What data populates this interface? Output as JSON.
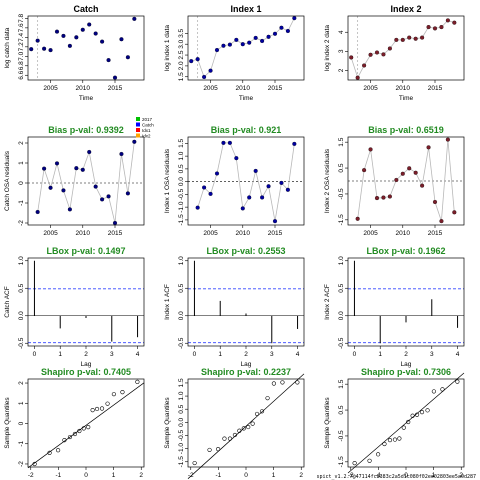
{
  "figure": {
    "footer": "spict_v1.2.7@47114fc8383c2a5d1c080f02ee02803ee5a0d287"
  },
  "chart_data": [
    {
      "type": "scatter",
      "row": 0,
      "col": 0,
      "title": "Catch",
      "title_color": "#000000",
      "xlabel": "Time",
      "ylabel": "log catch data",
      "xlim": [
        2001.5,
        2019.5
      ],
      "ylim": [
        6.5,
        7.85
      ],
      "xticks": [
        2005,
        2010,
        2015
      ],
      "yticks": [
        6.6,
        6.8,
        7.0,
        7.2,
        7.4,
        7.6,
        7.8
      ],
      "vline": 2003,
      "connect": false,
      "point_color": "#000080",
      "point_style": "filled",
      "x": [
        2002,
        2003,
        2004,
        2005,
        2006,
        2007,
        2008,
        2009,
        2010,
        2011,
        2012,
        2013,
        2014,
        2015,
        2016,
        2017,
        2018
      ],
      "y": [
        7.15,
        7.33,
        7.16,
        7.13,
        7.52,
        7.43,
        7.22,
        7.4,
        7.56,
        7.67,
        7.48,
        7.31,
        6.92,
        6.55,
        7.36,
        6.98,
        7.79
      ]
    },
    {
      "type": "line",
      "row": 0,
      "col": 1,
      "title": "Index 1",
      "title_color": "#000000",
      "xlabel": "Time",
      "ylabel": "log index 1 data",
      "xlim": [
        2001.5,
        2019.5
      ],
      "ylim": [
        1.35,
        4.3
      ],
      "xticks": [
        2005,
        2010,
        2015
      ],
      "yticks": [
        1.5,
        2.0,
        2.5,
        3.0,
        3.5
      ],
      "vline": 2003,
      "connect": true,
      "point_color": "#0000A0",
      "point_style": "filled",
      "x": [
        2002,
        2003,
        2004,
        2005,
        2006,
        2007,
        2008,
        2009,
        2010,
        2011,
        2012,
        2013,
        2014,
        2015,
        2016,
        2017,
        2018
      ],
      "y": [
        2.22,
        2.31,
        1.49,
        1.78,
        2.73,
        2.93,
        2.98,
        3.2,
        3.0,
        3.07,
        3.29,
        3.15,
        3.34,
        3.48,
        3.76,
        3.61,
        4.2
      ]
    },
    {
      "type": "line",
      "row": 0,
      "col": 2,
      "title": "Index 2",
      "title_color": "#000000",
      "xlabel": "Time",
      "ylabel": "log index 2 data",
      "xlim": [
        2001.5,
        2019.5
      ],
      "ylim": [
        1.5,
        4.85
      ],
      "xticks": [
        2005,
        2010,
        2015
      ],
      "yticks": [
        2.0,
        3.0,
        4.0
      ],
      "vline": 2003,
      "connect": true,
      "point_color": "#7B1E2A",
      "point_style": "filled",
      "x": [
        2002,
        2003,
        2004,
        2005,
        2006,
        2007,
        2008,
        2009,
        2010,
        2011,
        2012,
        2013,
        2014,
        2015,
        2016,
        2017,
        2018
      ],
      "y": [
        2.68,
        1.62,
        2.26,
        2.82,
        2.94,
        2.84,
        3.15,
        3.6,
        3.6,
        3.72,
        3.66,
        3.72,
        4.27,
        4.2,
        4.27,
        4.62,
        4.5
      ]
    },
    {
      "type": "line",
      "row": 1,
      "col": 0,
      "title": "Bias p-val: 0.9392",
      "title_color": "#228B22",
      "xlabel": "",
      "ylabel": "Catch OSA residuals",
      "xlim": [
        2001.5,
        2019.5
      ],
      "ylim": [
        -2.1,
        2.3
      ],
      "xticks": [
        2005,
        2010,
        2015
      ],
      "yticks": [
        -2,
        -1,
        0,
        1,
        2
      ],
      "hline": 0,
      "connect": true,
      "point_color": "#000080",
      "point_style": "filled",
      "x": [
        2003,
        2004,
        2005,
        2006,
        2007,
        2008,
        2009,
        2010,
        2011,
        2012,
        2013,
        2014,
        2015,
        2016,
        2017,
        2018
      ],
      "y": [
        -1.45,
        0.72,
        -0.24,
        0.98,
        -0.37,
        -1.32,
        0.74,
        0.66,
        1.55,
        -0.18,
        -0.82,
        -0.67,
        -2.0,
        1.45,
        -0.52,
        2.06
      ],
      "legend": {
        "position": "top-right",
        "entries": [
          {
            "label": "2017",
            "color": "#00C000"
          },
          {
            "label": "Catch",
            "color": "#0000FF"
          },
          {
            "label": "Idx1",
            "color": "#FF0000"
          },
          {
            "label": "Idx2",
            "color": "#FFA500"
          }
        ]
      }
    },
    {
      "type": "line",
      "row": 1,
      "col": 1,
      "title": "Bias p-val: 0.921",
      "title_color": "#228B22",
      "xlabel": "",
      "ylabel": "Index 1 OSA residuals",
      "xlim": [
        2001.5,
        2019.5
      ],
      "ylim": [
        -1.7,
        1.75
      ],
      "xticks": [
        2005,
        2010,
        2015
      ],
      "yticks": [
        -1.5,
        -1.0,
        -0.5,
        0.0,
        0.5,
        1.0,
        1.5
      ],
      "hline": 0,
      "connect": true,
      "point_color": "#0000A0",
      "point_style": "filled",
      "x": [
        2003,
        2004,
        2005,
        2006,
        2007,
        2008,
        2009,
        2010,
        2011,
        2012,
        2013,
        2014,
        2015,
        2016,
        2017,
        2018
      ],
      "y": [
        -1.02,
        -0.23,
        -0.48,
        0.32,
        1.52,
        1.52,
        0.92,
        -1.05,
        -0.62,
        0.42,
        -0.62,
        -0.18,
        -1.55,
        -0.05,
        -0.32,
        1.48
      ]
    },
    {
      "type": "line",
      "row": 1,
      "col": 2,
      "title": "Bias p-val: 0.6519",
      "title_color": "#228B22",
      "xlabel": "",
      "ylabel": "Index 2 OSA residuals",
      "xlim": [
        2001.5,
        2019.5
      ],
      "ylim": [
        -1.7,
        1.7
      ],
      "xticks": [
        2005,
        2010,
        2015
      ],
      "yticks": [
        -1.5,
        -0.5,
        0.5,
        1.5
      ],
      "hline": 0,
      "connect": true,
      "point_color": "#7B1E2A",
      "point_style": "filled",
      "x": [
        2003,
        2004,
        2005,
        2006,
        2007,
        2008,
        2009,
        2010,
        2011,
        2012,
        2013,
        2014,
        2015,
        2016,
        2017,
        2018
      ],
      "y": [
        -1.46,
        0.42,
        1.22,
        -0.66,
        -0.64,
        -0.6,
        0.04,
        0.28,
        0.49,
        0.32,
        -0.18,
        1.3,
        -0.81,
        -1.55,
        1.6,
        -1.21
      ]
    },
    {
      "type": "acf",
      "row": 2,
      "col": 0,
      "title": "LBox p-val: 0.1497",
      "title_color": "#228B22",
      "xlabel": "Lag",
      "ylabel": "Catch ACF",
      "xlim": [
        -0.25,
        4.25
      ],
      "ylim": [
        -0.55,
        1.05
      ],
      "xticks": [
        0,
        1,
        2,
        3,
        4
      ],
      "yticks": [
        -0.5,
        0.0,
        0.5,
        1.0
      ],
      "ci": 0.49,
      "lags": [
        0,
        1,
        2,
        3,
        4
      ],
      "values": [
        1.0,
        -0.23,
        -0.04,
        -0.47,
        -0.39
      ]
    },
    {
      "type": "acf",
      "row": 2,
      "col": 1,
      "title": "LBox p-val: 0.2553",
      "title_color": "#228B22",
      "xlabel": "Lag",
      "ylabel": "Index 1 ACF",
      "xlim": [
        -0.25,
        4.25
      ],
      "ylim": [
        -0.55,
        1.05
      ],
      "xticks": [
        0,
        1,
        2,
        3,
        4
      ],
      "yticks": [
        -0.5,
        0.0,
        0.5,
        1.0
      ],
      "ci": 0.49,
      "lags": [
        0,
        1,
        2,
        3,
        4
      ],
      "values": [
        1.0,
        0.27,
        0.04,
        -0.5,
        -0.24
      ]
    },
    {
      "type": "acf",
      "row": 2,
      "col": 2,
      "title": "LBox p-val: 0.1962",
      "title_color": "#228B22",
      "xlabel": "Lag",
      "ylabel": "Index 2 ACF",
      "xlim": [
        -0.25,
        4.25
      ],
      "ylim": [
        -0.55,
        1.05
      ],
      "xticks": [
        0,
        1,
        2,
        3,
        4
      ],
      "yticks": [
        -0.5,
        0.0,
        0.5,
        1.0
      ],
      "ci": 0.49,
      "lags": [
        0,
        1,
        2,
        3,
        4
      ],
      "values": [
        1.0,
        -0.5,
        -0.12,
        0.3,
        -0.22
      ]
    },
    {
      "type": "qq",
      "row": 3,
      "col": 0,
      "title": "Shapiro p-val: 0.7405",
      "title_color": "#228B22",
      "xlabel": "Theoretical Quantiles",
      "ylabel": "Sample Quantiles",
      "xlim": [
        -2.1,
        2.1
      ],
      "ylim": [
        -2.15,
        2.2
      ],
      "xticks": [
        -2,
        -1,
        0,
        1,
        2
      ],
      "yticks": [
        -2,
        -1,
        0,
        1,
        2
      ],
      "qq_line": {
        "intercept": -0.09,
        "slope": 1.0
      },
      "theoretical": [
        -1.86,
        -1.32,
        -1.01,
        -0.78,
        -0.58,
        -0.4,
        -0.24,
        -0.08,
        0.08,
        0.24,
        0.4,
        0.58,
        0.78,
        1.01,
        1.32,
        1.86
      ],
      "sample": [
        -2.0,
        -1.45,
        -1.32,
        -0.82,
        -0.67,
        -0.52,
        -0.37,
        -0.24,
        -0.18,
        0.66,
        0.72,
        0.74,
        0.98,
        1.45,
        1.55,
        2.06
      ]
    },
    {
      "type": "qq",
      "row": 3,
      "col": 1,
      "title": "Shapiro p-val: 0.2237",
      "title_color": "#228B22",
      "xlabel": "Theoretical Quantiles",
      "ylabel": "Sample Quantiles",
      "xlim": [
        -2.1,
        2.1
      ],
      "ylim": [
        -1.7,
        1.65
      ],
      "xticks": [
        -2,
        -1,
        0,
        1,
        2
      ],
      "yticks": [
        -1.5,
        -1.0,
        -0.5,
        0.0,
        0.5,
        1.0,
        1.5
      ],
      "qq_line": {
        "intercept": -0.15,
        "slope": 0.95
      },
      "theoretical": [
        -1.86,
        -1.32,
        -1.01,
        -0.78,
        -0.58,
        -0.4,
        -0.24,
        -0.08,
        0.08,
        0.24,
        0.4,
        0.58,
        0.78,
        1.01,
        1.32,
        1.86
      ],
      "sample": [
        -1.55,
        -1.05,
        -1.02,
        -0.62,
        -0.62,
        -0.48,
        -0.32,
        -0.23,
        -0.18,
        -0.05,
        0.32,
        0.42,
        0.92,
        1.48,
        1.52,
        1.52
      ]
    },
    {
      "type": "qq",
      "row": 3,
      "col": 2,
      "title": "Shapiro p-val: 0.7306",
      "title_color": "#228B22",
      "xlabel": "Theoretical Quantiles",
      "ylabel": "Sample Quantiles",
      "xlim": [
        -2.1,
        2.1
      ],
      "ylim": [
        -1.7,
        1.7
      ],
      "xticks": [
        -2,
        -1,
        0,
        1,
        2
      ],
      "yticks": [
        -1.5,
        -0.5,
        0.5,
        1.5
      ],
      "qq_line": {
        "intercept": 0.0,
        "slope": 0.92
      },
      "theoretical": [
        -1.86,
        -1.32,
        -1.01,
        -0.78,
        -0.58,
        -0.4,
        -0.24,
        -0.08,
        0.08,
        0.24,
        0.4,
        0.58,
        0.78,
        1.01,
        1.32,
        1.86
      ],
      "sample": [
        -1.55,
        -1.46,
        -1.21,
        -0.81,
        -0.66,
        -0.64,
        -0.6,
        -0.18,
        0.04,
        0.28,
        0.32,
        0.42,
        0.49,
        1.22,
        1.3,
        1.6
      ]
    }
  ]
}
